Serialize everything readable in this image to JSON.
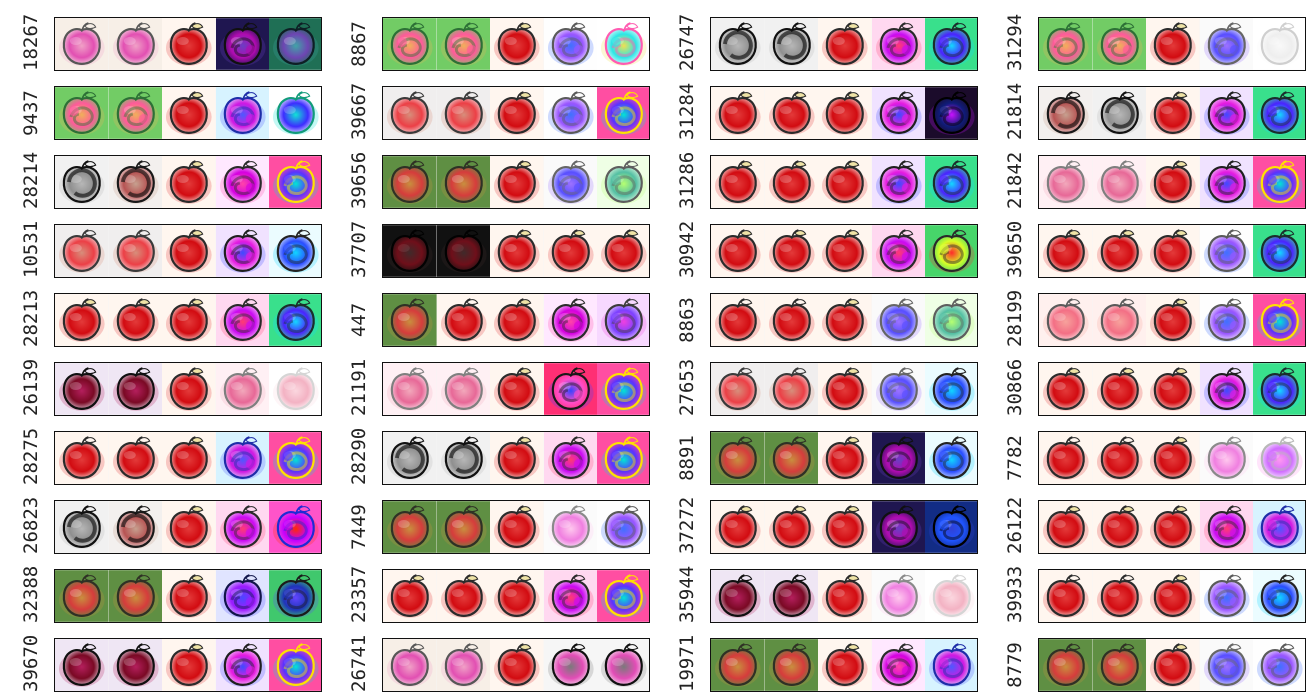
{
  "columns": [
    {
      "labels": [
        "18267",
        "9437",
        "28214",
        "10531",
        "28213",
        "26139",
        "28275",
        "26823",
        "32388",
        "39670"
      ],
      "variants": [
        [
          "soft-heart",
          "soft-heart",
          "clean",
          "purple",
          "dark-teal"
        ],
        [
          "rainbow-green",
          "rainbow-green",
          "clean",
          "blue-magenta",
          "teal-white"
        ],
        [
          "monochrome",
          "monochrome-warm",
          "clean",
          "magenta",
          "rainbow"
        ],
        [
          "grey-warm",
          "grey-warm",
          "clean",
          "magenta-blue",
          "cyan-blue"
        ],
        [
          "clean",
          "clean",
          "clean",
          "red-magenta",
          "green-cyan"
        ],
        [
          "dark-red",
          "dark-red",
          "clean",
          "pale-pink",
          "ghost-pink"
        ],
        [
          "warm",
          "warm",
          "clean",
          "blue-magenta",
          "rainbow"
        ],
        [
          "monochrome",
          "monochrome-warm",
          "clean",
          "red-magenta",
          "heart-magenta"
        ],
        [
          "olive",
          "olive",
          "clean",
          "purple-blue",
          "green-blue"
        ],
        [
          "dark-red",
          "dark-red",
          "clean",
          "magenta-blue",
          "rainbow"
        ]
      ]
    },
    {
      "labels": [
        "8867",
        "39667",
        "39656",
        "37707",
        "447",
        "21191",
        "28290",
        "7449",
        "23357",
        "26741"
      ],
      "variants": [
        [
          "rainbow-green",
          "rainbow-green",
          "clean",
          "white-blue",
          "white-rainbow"
        ],
        [
          "grey-warm",
          "grey-warm",
          "clean",
          "white-blue",
          "rainbow"
        ],
        [
          "olive",
          "olive",
          "clean",
          "white-purple",
          "green-white"
        ],
        [
          "dark",
          "dark",
          "clean",
          "clean",
          "clean"
        ],
        [
          "olive",
          "warm",
          "clean",
          "magenta",
          "purple-magenta"
        ],
        [
          "pale-pink",
          "pale-pink",
          "clean",
          "red-blue",
          "rainbow"
        ],
        [
          "monochrome",
          "monochrome",
          "clean",
          "red-magenta",
          "rainbow"
        ],
        [
          "olive",
          "olive",
          "clean",
          "white-pink",
          "white-blue"
        ],
        [
          "clean",
          "clean",
          "clean",
          "red-magenta",
          "rainbow"
        ],
        [
          "soft-heart",
          "soft-heart",
          "clean",
          "grey-dark",
          "grey-dark"
        ]
      ]
    },
    {
      "labels": [
        "26747",
        "31284",
        "31286",
        "30942",
        "8863",
        "27653",
        "8891",
        "37272",
        "35944",
        "19971"
      ],
      "variants": [
        [
          "monochrome",
          "monochrome",
          "clean",
          "red-magenta",
          "green-cyan"
        ],
        [
          "clean",
          "clean",
          "clean",
          "magenta-blue",
          "dark-magenta"
        ],
        [
          "clean",
          "clean",
          "clean",
          "magenta-blue",
          "green-cyan"
        ],
        [
          "clean",
          "clean",
          "clean",
          "red-magenta",
          "green-red"
        ],
        [
          "warm",
          "warm",
          "clean",
          "white-purple",
          "green-white"
        ],
        [
          "grey-warm",
          "grey-warm",
          "clean",
          "white-purple",
          "cyan-blue"
        ],
        [
          "olive",
          "olive",
          "clean",
          "purple",
          "cyan-blue"
        ],
        [
          "clean",
          "clean",
          "clean",
          "purple",
          "dark-blue"
        ],
        [
          "dark-red",
          "dark-red",
          "clean",
          "white-pink",
          "ghost-pink"
        ],
        [
          "olive",
          "olive",
          "clean",
          "magenta",
          "blue-magenta"
        ]
      ]
    },
    {
      "labels": [
        "31294",
        "21814",
        "21842",
        "39650",
        "28199",
        "30866",
        "7782",
        "26122",
        "39933",
        "8779"
      ],
      "variants": [
        [
          "rainbow-green",
          "rainbow-green",
          "clean",
          "white-purple",
          "ghost-white"
        ],
        [
          "monochrome-warm",
          "monochrome",
          "clean",
          "magenta-blue",
          "green-cyan"
        ],
        [
          "pale-pink",
          "pale-pink",
          "clean",
          "magenta-blue",
          "rainbow"
        ],
        [
          "clean",
          "clean",
          "clean",
          "white-blue",
          "green-cyan"
        ],
        [
          "pale-red",
          "pale-red",
          "clean",
          "white-blue",
          "rainbow"
        ],
        [
          "clean",
          "clean",
          "clean",
          "magenta-blue",
          "green-cyan"
        ],
        [
          "warm",
          "warm",
          "clean",
          "white-pink",
          "white-magenta"
        ],
        [
          "clean",
          "clean",
          "clean",
          "red-magenta",
          "blue-magenta"
        ],
        [
          "warm",
          "warm",
          "clean",
          "white-blue",
          "cyan-blue"
        ],
        [
          "olive",
          "olive",
          "clean",
          "white-purple",
          "white-blue"
        ]
      ]
    }
  ],
  "palettes": {
    "clean": [
      "#fff6ef",
      "#e33a3a",
      "#d20b11",
      "#2b2b2b"
    ],
    "soft-heart": [
      "#f7efe7",
      "#f0a1c6",
      "#e24fb2",
      "#575757"
    ],
    "rainbow-green": [
      "#72cc65",
      "#f0b05a",
      "#ff5a9a",
      "#2d7036"
    ],
    "purple": [
      "#1f1650",
      "#6a3ec4",
      "#b00bb0",
      "#101010"
    ],
    "dark-teal": [
      "#1f6f55",
      "#41a4a6",
      "#6e45b3",
      "#0e1f25"
    ],
    "blue-magenta": [
      "#d7f3ff",
      "#4c59ff",
      "#d218e2",
      "#1e2da8"
    ],
    "teal-white": [
      "#ffffff",
      "#11e3d4",
      "#3d2cff",
      "#119b7a"
    ],
    "monochrome": [
      "#f1f1f1",
      "#b7b7b7",
      "#8f8f8f",
      "#111111"
    ],
    "monochrome-warm": [
      "#f3f0ee",
      "#c6a08f",
      "#b75353",
      "#191919"
    ],
    "magenta": [
      "#ffe8ff",
      "#ff45a8",
      "#d500e0",
      "#2b2b2b"
    ],
    "rainbow": [
      "#ff4ea2",
      "#00e6d4",
      "#5b31ff",
      "#ffe200"
    ],
    "grey-warm": [
      "#f0eeee",
      "#d78e7b",
      "#ec3f46",
      "#3a3a3a"
    ],
    "magenta-blue": [
      "#f0e2ff",
      "#3d4bff",
      "#e61ae0",
      "#1f1f1f"
    ],
    "cyan-blue": [
      "#ebfcff",
      "#10d5ff",
      "#2a4cff",
      "#232323"
    ],
    "red-magenta": [
      "#ffd8f0",
      "#ff3c70",
      "#ca0af3",
      "#2a2a2a"
    ],
    "green-cyan": [
      "#39e08c",
      "#13d8ff",
      "#4b22ff",
      "#1b2d2c"
    ],
    "dark-red": [
      "#efe6f4",
      "#b41f5d",
      "#7a0924",
      "#101010"
    ],
    "pale-pink": [
      "#fff0f4",
      "#f2a8bb",
      "#e76897",
      "#7f7f7f"
    ],
    "ghost-pink": [
      "#ffffff",
      "#fbd7df",
      "#f3b2c3",
      "#d5d5d5"
    ],
    "heart-magenta": [
      "#ff54c9",
      "#ff2a00",
      "#c500ff",
      "#1f2bd4"
    ],
    "olive": [
      "#5f8f43",
      "#c88f3e",
      "#d63c3c",
      "#2f3125"
    ],
    "purple-blue": [
      "#e0e4ff",
      "#4b47ff",
      "#9d1bff",
      "#11154a"
    ],
    "green-blue": [
      "#40c86d",
      "#6245ff",
      "#1f34b9",
      "#1b1b1b"
    ],
    "white-blue": [
      "#fefefe",
      "#3f71ff",
      "#9a56ff",
      "#5a5a5a"
    ],
    "white-rainbow": [
      "#ffffff",
      "#f1e051",
      "#2ce6e6",
      "#ff5bb1"
    ],
    "white-purple": [
      "#fafafa",
      "#9d72ff",
      "#584fff",
      "#666666"
    ],
    "green-white": [
      "#efffe5",
      "#b6ff72",
      "#53bfa3",
      "#5e5e5e"
    ],
    "dark": [
      "#111111",
      "#402a2a",
      "#6f0f1a",
      "#020202"
    ],
    "purple-magenta": [
      "#f7d8ff",
      "#f040e0",
      "#7b40ff",
      "#3b3b3b"
    ],
    "red-blue": [
      "#ff2f74",
      "#3743ff",
      "#ff4dc9",
      "#191919"
    ],
    "white-pink": [
      "#fbfbfb",
      "#ffc8ee",
      "#f07fe0",
      "#8a8a8a"
    ],
    "grey-dark": [
      "#f6f6f6",
      "#7a7a7a",
      "#e34db7",
      "#111111"
    ],
    "dark-magenta": [
      "#1b0b2b",
      "#c911ff",
      "#0f1c79",
      "#000000"
    ],
    "green-red": [
      "#47d56a",
      "#ff2a2a",
      "#d7ff26",
      "#2a2a2a"
    ],
    "dark-blue": [
      "#122c85",
      "#3141d6",
      "#1f54ff",
      "#000000"
    ],
    "white-magenta": [
      "#ffffff",
      "#ff98f0",
      "#d06dff",
      "#b8b8b8"
    ],
    "ghost-white": [
      "#ffffff",
      "#f9f9f9",
      "#eeeeee",
      "#cfcfcf"
    ],
    "pale-red": [
      "#fff0ee",
      "#f7a29c",
      "#f36f85",
      "#5a5a5a"
    ]
  }
}
